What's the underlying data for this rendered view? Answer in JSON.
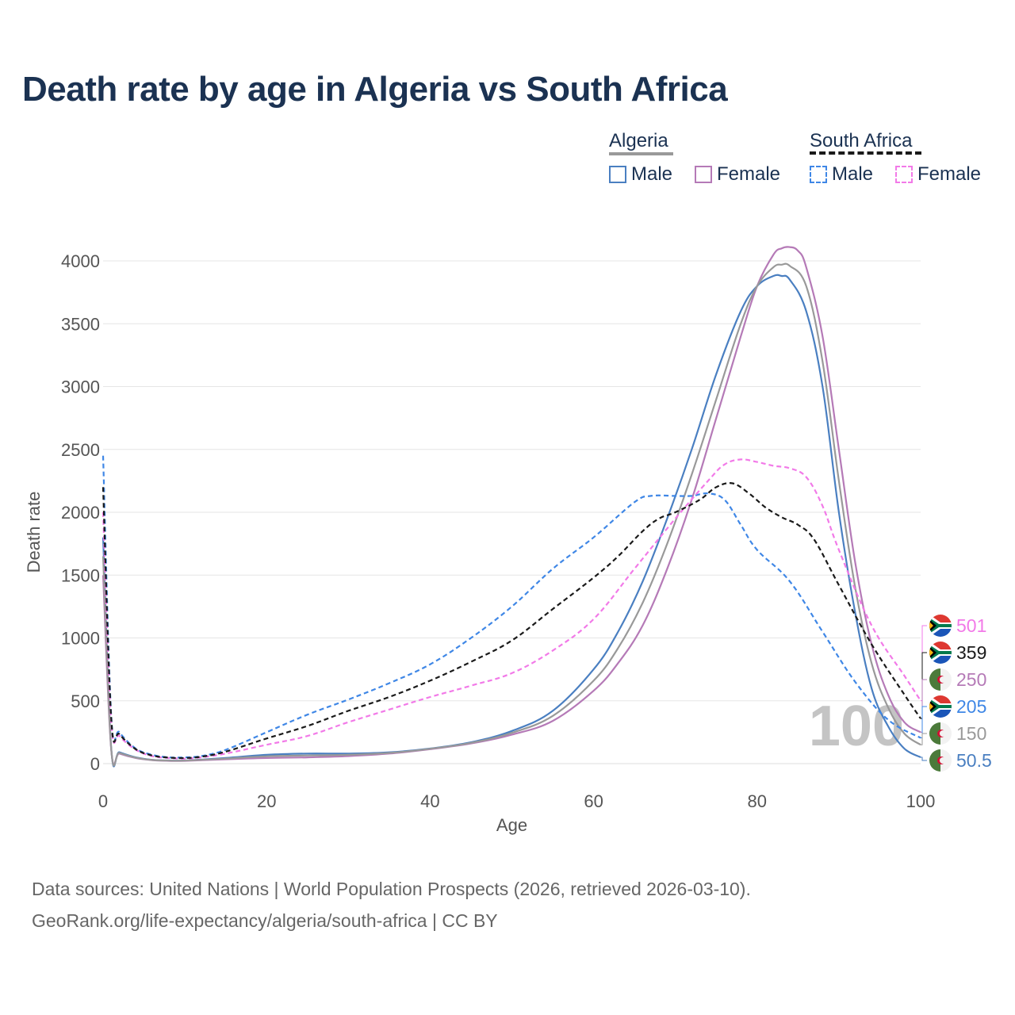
{
  "title": "Death rate by age in Algeria vs South Africa",
  "legend": {
    "algeria_label": "Algeria",
    "south_africa_label": "South Africa",
    "male_label": "Male",
    "female_label": "Female"
  },
  "source_line1": "Data sources: United Nations | World Population Prospects (2026, retrieved 2026-03-10).",
  "source_line2": "GeoRank.org/life-expectancy/algeria/south-africa | CC BY",
  "chart_data": {
    "type": "line",
    "xlabel": "Age",
    "ylabel": "Death rate",
    "xlim": [
      0,
      100
    ],
    "ylim": [
      0,
      4200
    ],
    "x_ticks": [
      0,
      20,
      40,
      60,
      80,
      100
    ],
    "y_ticks": [
      0,
      500,
      1000,
      1500,
      2000,
      2500,
      3000,
      3500,
      4000
    ],
    "grid": true,
    "watermark": "100",
    "series": [
      {
        "name": "Algeria Male",
        "country": "Algeria",
        "sex": "Male",
        "color": "#4a7fc1",
        "dash": false,
        "x": [
          0,
          1,
          2,
          4,
          6,
          8,
          10,
          15,
          20,
          25,
          30,
          35,
          40,
          45,
          50,
          55,
          60,
          63,
          66,
          69,
          72,
          75,
          78,
          80,
          82,
          83,
          84,
          86,
          88,
          90,
          92,
          94,
          96,
          98,
          100
        ],
        "values": [
          1800,
          120,
          90,
          50,
          30,
          25,
          25,
          45,
          70,
          80,
          80,
          90,
          120,
          170,
          260,
          420,
          750,
          1050,
          1450,
          1950,
          2500,
          3100,
          3600,
          3800,
          3880,
          3880,
          3850,
          3600,
          3000,
          2000,
          1200,
          600,
          300,
          120,
          50.5
        ],
        "end_label": "50.5"
      },
      {
        "name": "Algeria Female",
        "country": "Algeria",
        "sex": "Female",
        "color": "#b57ab7",
        "dash": false,
        "x": [
          0,
          1,
          2,
          4,
          6,
          8,
          10,
          15,
          20,
          25,
          30,
          35,
          40,
          45,
          50,
          55,
          60,
          63,
          66,
          69,
          72,
          75,
          78,
          80,
          82,
          83,
          84,
          85,
          86,
          88,
          90,
          92,
          94,
          96,
          98,
          100
        ],
        "values": [
          1500,
          110,
          80,
          45,
          28,
          22,
          22,
          35,
          45,
          50,
          60,
          80,
          115,
          160,
          230,
          340,
          580,
          800,
          1100,
          1550,
          2100,
          2750,
          3400,
          3800,
          4050,
          4100,
          4110,
          4080,
          3950,
          3400,
          2500,
          1600,
          950,
          550,
          330,
          250
        ],
        "end_label": "250"
      },
      {
        "name": "Algeria Total",
        "country": "Algeria",
        "sex": "Total",
        "color": "#999999",
        "dash": false,
        "x": [
          0,
          1,
          2,
          4,
          6,
          8,
          10,
          15,
          20,
          25,
          30,
          35,
          40,
          45,
          50,
          55,
          60,
          63,
          66,
          69,
          72,
          75,
          78,
          80,
          82,
          83,
          84,
          86,
          88,
          90,
          92,
          94,
          96,
          98,
          100
        ],
        "values": [
          1650,
          115,
          85,
          48,
          29,
          24,
          24,
          40,
          58,
          65,
          70,
          85,
          118,
          165,
          245,
          380,
          660,
          920,
          1280,
          1750,
          2300,
          2900,
          3500,
          3800,
          3950,
          3970,
          3960,
          3800,
          3200,
          2250,
          1400,
          800,
          450,
          240,
          150
        ],
        "end_label": "150"
      },
      {
        "name": "South Africa Male",
        "country": "South Africa",
        "sex": "Male",
        "color": "#3f87e6",
        "dash": true,
        "x": [
          0,
          1,
          2,
          4,
          6,
          8,
          10,
          12,
          15,
          20,
          25,
          30,
          35,
          40,
          45,
          50,
          55,
          60,
          65,
          67,
          70,
          72,
          74,
          76,
          78,
          80,
          84,
          88,
          92,
          96,
          100
        ],
        "values": [
          2450,
          380,
          250,
          120,
          70,
          50,
          50,
          60,
          110,
          250,
          390,
          510,
          640,
          790,
          1000,
          1250,
          1550,
          1800,
          2080,
          2130,
          2130,
          2130,
          2150,
          2100,
          1900,
          1700,
          1450,
          1050,
          650,
          350,
          205
        ],
        "end_label": "205"
      },
      {
        "name": "South Africa Female",
        "country": "South Africa",
        "sex": "Female",
        "color": "#f27ae8",
        "dash": true,
        "x": [
          0,
          1,
          2,
          4,
          6,
          8,
          10,
          12,
          15,
          20,
          25,
          30,
          35,
          40,
          45,
          50,
          55,
          60,
          65,
          70,
          74,
          76,
          78,
          80,
          82,
          84,
          86,
          88,
          90,
          94,
          98,
          100
        ],
        "values": [
          2000,
          330,
          220,
          110,
          60,
          45,
          40,
          50,
          80,
          150,
          220,
          330,
          430,
          530,
          620,
          720,
          900,
          1150,
          1550,
          1950,
          2250,
          2380,
          2420,
          2400,
          2370,
          2350,
          2280,
          2050,
          1700,
          1100,
          700,
          501
        ],
        "end_label": "501"
      },
      {
        "name": "South Africa Total",
        "country": "South Africa",
        "sex": "Total",
        "color": "#1a1a1a",
        "dash": true,
        "x": [
          0,
          1,
          2,
          4,
          6,
          8,
          10,
          12,
          15,
          20,
          25,
          30,
          35,
          40,
          45,
          50,
          55,
          60,
          63,
          66,
          68,
          70,
          73,
          75,
          77,
          79,
          81,
          83,
          85,
          87,
          90,
          94,
          98,
          100
        ],
        "values": [
          2200,
          355,
          235,
          115,
          65,
          48,
          45,
          55,
          95,
          200,
          300,
          420,
          530,
          660,
          810,
          980,
          1230,
          1480,
          1650,
          1850,
          1950,
          2000,
          2100,
          2200,
          2230,
          2150,
          2040,
          1960,
          1900,
          1780,
          1420,
          950,
          550,
          359
        ],
        "end_label": "359"
      }
    ]
  }
}
